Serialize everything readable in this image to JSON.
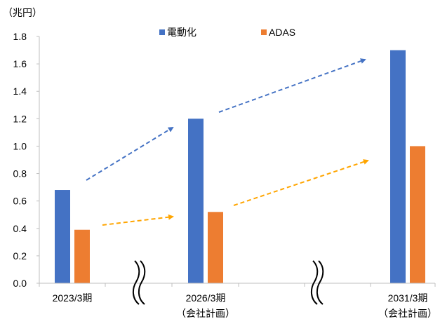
{
  "chart_data": {
    "type": "bar",
    "unit_label": "（兆円）",
    "ylim": [
      0,
      1.8
    ],
    "yticks": [
      "0.0",
      "0.2",
      "0.4",
      "0.6",
      "0.8",
      "1.0",
      "1.2",
      "1.4",
      "1.6",
      "1.8"
    ],
    "categories": [
      {
        "line1": "2023/3期",
        "line2": ""
      },
      {
        "line1": "2026/3期",
        "line2": "（会社計画）"
      },
      {
        "line1": "2031/3期",
        "line2": "（会社計画）"
      }
    ],
    "series": [
      {
        "name": "電動化",
        "color": "#4472C4",
        "values": [
          0.68,
          1.2,
          1.7
        ]
      },
      {
        "name": "ADAS",
        "color": "#ED7D31",
        "values": [
          0.39,
          0.52,
          1.0
        ]
      }
    ],
    "legend_position": "top-center",
    "grid": false,
    "axis_breaks": "between categories (≈ symbols)",
    "trend_arrows": [
      {
        "series": "電動化",
        "style": "dashed",
        "color": "#4472C4"
      },
      {
        "series": "ADAS",
        "style": "dashed",
        "color": "#FFA500"
      }
    ]
  }
}
